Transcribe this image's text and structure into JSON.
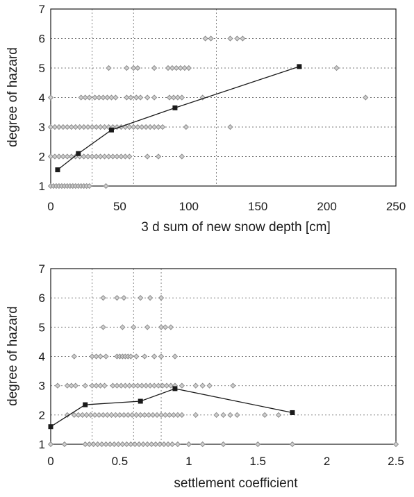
{
  "chart_data": [
    {
      "type": "scatter",
      "xlabel": "3 d sum of new snow depth  [cm]",
      "ylabel": "degree of hazard",
      "xlim": [
        0,
        250
      ],
      "ylim": [
        1,
        7
      ],
      "xticks": [
        "0",
        "50",
        "100",
        "150",
        "200",
        "250"
      ],
      "yticks": [
        "1",
        "2",
        "3",
        "4",
        "5",
        "6",
        "7"
      ],
      "grid": "dotted (vertical lines at 30, 60, 120 cm)",
      "series": [
        {
          "marker": "diamond",
          "color": "#8a8a8a",
          "points": [
            [
              0,
              1
            ],
            [
              2,
              1
            ],
            [
              4,
              1
            ],
            [
              6,
              1
            ],
            [
              8,
              1
            ],
            [
              10,
              1
            ],
            [
              12,
              1
            ],
            [
              14,
              1
            ],
            [
              16,
              1
            ],
            [
              18,
              1
            ],
            [
              20,
              1
            ],
            [
              22,
              1
            ],
            [
              24,
              1
            ],
            [
              26,
              1
            ],
            [
              28,
              1
            ],
            [
              40,
              1
            ],
            [
              0,
              2
            ],
            [
              3,
              2
            ],
            [
              6,
              2
            ],
            [
              9,
              2
            ],
            [
              12,
              2
            ],
            [
              15,
              2
            ],
            [
              18,
              2
            ],
            [
              21,
              2
            ],
            [
              24,
              2
            ],
            [
              27,
              2
            ],
            [
              30,
              2
            ],
            [
              33,
              2
            ],
            [
              36,
              2
            ],
            [
              39,
              2
            ],
            [
              42,
              2
            ],
            [
              45,
              2
            ],
            [
              48,
              2
            ],
            [
              51,
              2
            ],
            [
              54,
              2
            ],
            [
              57,
              2
            ],
            [
              70,
              2
            ],
            [
              78,
              2
            ],
            [
              95,
              2
            ],
            [
              0,
              3
            ],
            [
              3,
              3
            ],
            [
              6,
              3
            ],
            [
              9,
              3
            ],
            [
              12,
              3
            ],
            [
              15,
              3
            ],
            [
              18,
              3
            ],
            [
              21,
              3
            ],
            [
              24,
              3
            ],
            [
              27,
              3
            ],
            [
              30,
              3
            ],
            [
              33,
              3
            ],
            [
              36,
              3
            ],
            [
              39,
              3
            ],
            [
              42,
              3
            ],
            [
              45,
              3
            ],
            [
              48,
              3
            ],
            [
              51,
              3
            ],
            [
              54,
              3
            ],
            [
              57,
              3
            ],
            [
              60,
              3
            ],
            [
              63,
              3
            ],
            [
              66,
              3
            ],
            [
              69,
              3
            ],
            [
              72,
              3
            ],
            [
              75,
              3
            ],
            [
              78,
              3
            ],
            [
              81,
              3
            ],
            [
              98,
              3
            ],
            [
              130,
              3
            ],
            [
              0,
              4
            ],
            [
              22,
              4
            ],
            [
              25,
              4
            ],
            [
              28,
              4
            ],
            [
              32,
              4
            ],
            [
              35,
              4
            ],
            [
              38,
              4
            ],
            [
              41,
              4
            ],
            [
              44,
              4
            ],
            [
              47,
              4
            ],
            [
              55,
              4
            ],
            [
              58,
              4
            ],
            [
              62,
              4
            ],
            [
              65,
              4
            ],
            [
              70,
              4
            ],
            [
              75,
              4
            ],
            [
              86,
              4
            ],
            [
              89,
              4
            ],
            [
              92,
              4
            ],
            [
              95,
              4
            ],
            [
              110,
              4
            ],
            [
              228,
              4
            ],
            [
              42,
              5
            ],
            [
              55,
              5
            ],
            [
              60,
              5
            ],
            [
              63,
              5
            ],
            [
              75,
              5
            ],
            [
              85,
              5
            ],
            [
              88,
              5
            ],
            [
              91,
              5
            ],
            [
              94,
              5
            ],
            [
              97,
              5
            ],
            [
              100,
              5
            ],
            [
              207,
              5
            ],
            [
              112,
              6
            ],
            [
              116,
              6
            ],
            [
              130,
              6
            ],
            [
              135,
              6
            ],
            [
              139,
              6
            ]
          ]
        },
        {
          "name": "",
          "marker": "square",
          "color": "#1a1a1a",
          "points": [
            [
              5,
              1.55
            ],
            [
              20,
              2.1
            ],
            [
              44,
              2.9
            ],
            [
              90,
              3.65
            ],
            [
              180,
              5.05
            ]
          ]
        }
      ]
    },
    {
      "type": "scatter",
      "xlabel": "settlement coefficient",
      "ylabel": "degree of hazard",
      "xlim": [
        0,
        2.5
      ],
      "ylim": [
        1,
        7
      ],
      "xticks": [
        "0",
        "0.5",
        "1",
        "1.5",
        "2",
        "2.5"
      ],
      "yticks": [
        "1",
        "2",
        "3",
        "4",
        "5",
        "6",
        "7"
      ],
      "grid": "dotted (vertical lines at 0.3, 0.6, 0.8)",
      "series": [
        {
          "marker": "diamond",
          "color": "#8a8a8a",
          "points": [
            [
              0,
              1
            ],
            [
              0.1,
              1
            ],
            [
              0.25,
              1
            ],
            [
              0.28,
              1
            ],
            [
              0.31,
              1
            ],
            [
              0.34,
              1
            ],
            [
              0.37,
              1
            ],
            [
              0.4,
              1
            ],
            [
              0.43,
              1
            ],
            [
              0.46,
              1
            ],
            [
              0.49,
              1
            ],
            [
              0.52,
              1
            ],
            [
              0.55,
              1
            ],
            [
              0.58,
              1
            ],
            [
              0.61,
              1
            ],
            [
              0.64,
              1
            ],
            [
              0.67,
              1
            ],
            [
              0.7,
              1
            ],
            [
              0.73,
              1
            ],
            [
              0.76,
              1
            ],
            [
              0.79,
              1
            ],
            [
              0.82,
              1
            ],
            [
              0.85,
              1
            ],
            [
              0.88,
              1
            ],
            [
              0.92,
              1
            ],
            [
              1,
              1
            ],
            [
              1.1,
              1
            ],
            [
              1.25,
              1
            ],
            [
              1.5,
              1
            ],
            [
              1.75,
              1
            ],
            [
              2.5,
              1
            ],
            [
              0.12,
              2
            ],
            [
              0.17,
              2
            ],
            [
              0.2,
              2
            ],
            [
              0.23,
              2
            ],
            [
              0.26,
              2
            ],
            [
              0.29,
              2
            ],
            [
              0.32,
              2
            ],
            [
              0.35,
              2
            ],
            [
              0.38,
              2
            ],
            [
              0.41,
              2
            ],
            [
              0.44,
              2
            ],
            [
              0.47,
              2
            ],
            [
              0.5,
              2
            ],
            [
              0.53,
              2
            ],
            [
              0.56,
              2
            ],
            [
              0.59,
              2
            ],
            [
              0.62,
              2
            ],
            [
              0.65,
              2
            ],
            [
              0.68,
              2
            ],
            [
              0.71,
              2
            ],
            [
              0.74,
              2
            ],
            [
              0.77,
              2
            ],
            [
              0.8,
              2
            ],
            [
              0.83,
              2
            ],
            [
              0.86,
              2
            ],
            [
              0.89,
              2
            ],
            [
              0.92,
              2
            ],
            [
              0.95,
              2
            ],
            [
              1.05,
              2
            ],
            [
              1.2,
              2
            ],
            [
              1.25,
              2
            ],
            [
              1.3,
              2
            ],
            [
              1.35,
              2
            ],
            [
              1.55,
              2
            ],
            [
              1.65,
              2
            ],
            [
              0.05,
              3
            ],
            [
              0.12,
              3
            ],
            [
              0.15,
              3
            ],
            [
              0.18,
              3
            ],
            [
              0.25,
              3
            ],
            [
              0.3,
              3
            ],
            [
              0.33,
              3
            ],
            [
              0.36,
              3
            ],
            [
              0.39,
              3
            ],
            [
              0.45,
              3
            ],
            [
              0.48,
              3
            ],
            [
              0.51,
              3
            ],
            [
              0.54,
              3
            ],
            [
              0.57,
              3
            ],
            [
              0.6,
              3
            ],
            [
              0.63,
              3
            ],
            [
              0.66,
              3
            ],
            [
              0.69,
              3
            ],
            [
              0.72,
              3
            ],
            [
              0.75,
              3
            ],
            [
              0.78,
              3
            ],
            [
              0.81,
              3
            ],
            [
              0.84,
              3
            ],
            [
              0.87,
              3
            ],
            [
              0.9,
              3
            ],
            [
              0.95,
              3
            ],
            [
              1.05,
              3
            ],
            [
              1.1,
              3
            ],
            [
              1.15,
              3
            ],
            [
              1.32,
              3
            ],
            [
              0.17,
              4
            ],
            [
              0.3,
              4
            ],
            [
              0.33,
              4
            ],
            [
              0.36,
              4
            ],
            [
              0.4,
              4
            ],
            [
              0.48,
              4
            ],
            [
              0.5,
              4
            ],
            [
              0.52,
              4
            ],
            [
              0.54,
              4
            ],
            [
              0.56,
              4
            ],
            [
              0.58,
              4
            ],
            [
              0.62,
              4
            ],
            [
              0.68,
              4
            ],
            [
              0.75,
              4
            ],
            [
              0.8,
              4
            ],
            [
              0.9,
              4
            ],
            [
              0.38,
              5
            ],
            [
              0.52,
              5
            ],
            [
              0.6,
              5
            ],
            [
              0.7,
              5
            ],
            [
              0.8,
              5
            ],
            [
              0.83,
              5
            ],
            [
              0.87,
              5
            ],
            [
              0.38,
              6
            ],
            [
              0.48,
              6
            ],
            [
              0.53,
              6
            ],
            [
              0.65,
              6
            ],
            [
              0.72,
              6
            ],
            [
              0.8,
              6
            ]
          ]
        },
        {
          "name": "",
          "marker": "square",
          "color": "#1a1a1a",
          "points": [
            [
              0,
              1.6
            ],
            [
              0.25,
              2.35
            ],
            [
              0.65,
              2.47
            ],
            [
              0.9,
              2.9
            ],
            [
              1.75,
              2.08
            ]
          ]
        }
      ]
    }
  ]
}
